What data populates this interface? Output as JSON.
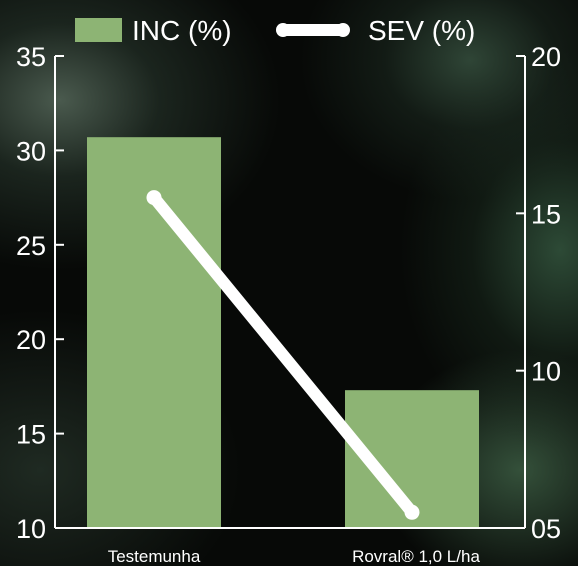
{
  "chart_data": {
    "type": "bar",
    "categories": [
      "Testemunha",
      "Rovral® 1,0 L/ha"
    ],
    "series": [
      {
        "name": "INC (%)",
        "type": "bar",
        "axis": "left",
        "values": [
          30.7,
          17.3
        ],
        "color": "#8db474"
      },
      {
        "name": "SEV (%)",
        "type": "line",
        "axis": "right",
        "values": [
          15.5,
          5.5
        ],
        "color": "#ffffff"
      }
    ],
    "y_left": {
      "min": 10,
      "max": 35,
      "ticks": [
        "10",
        "15",
        "20",
        "25",
        "30",
        "35"
      ]
    },
    "y_right": {
      "min": 5,
      "max": 20,
      "ticks": [
        "05",
        "10",
        "15",
        "20"
      ]
    },
    "legend_position": "top",
    "grid": false
  },
  "legend": {
    "inc_label": "INC (%)",
    "sev_label": "SEV (%)"
  },
  "colors": {
    "bar": "#8db474",
    "line": "#ffffff",
    "axis": "#ffffff",
    "background": "#070907"
  }
}
